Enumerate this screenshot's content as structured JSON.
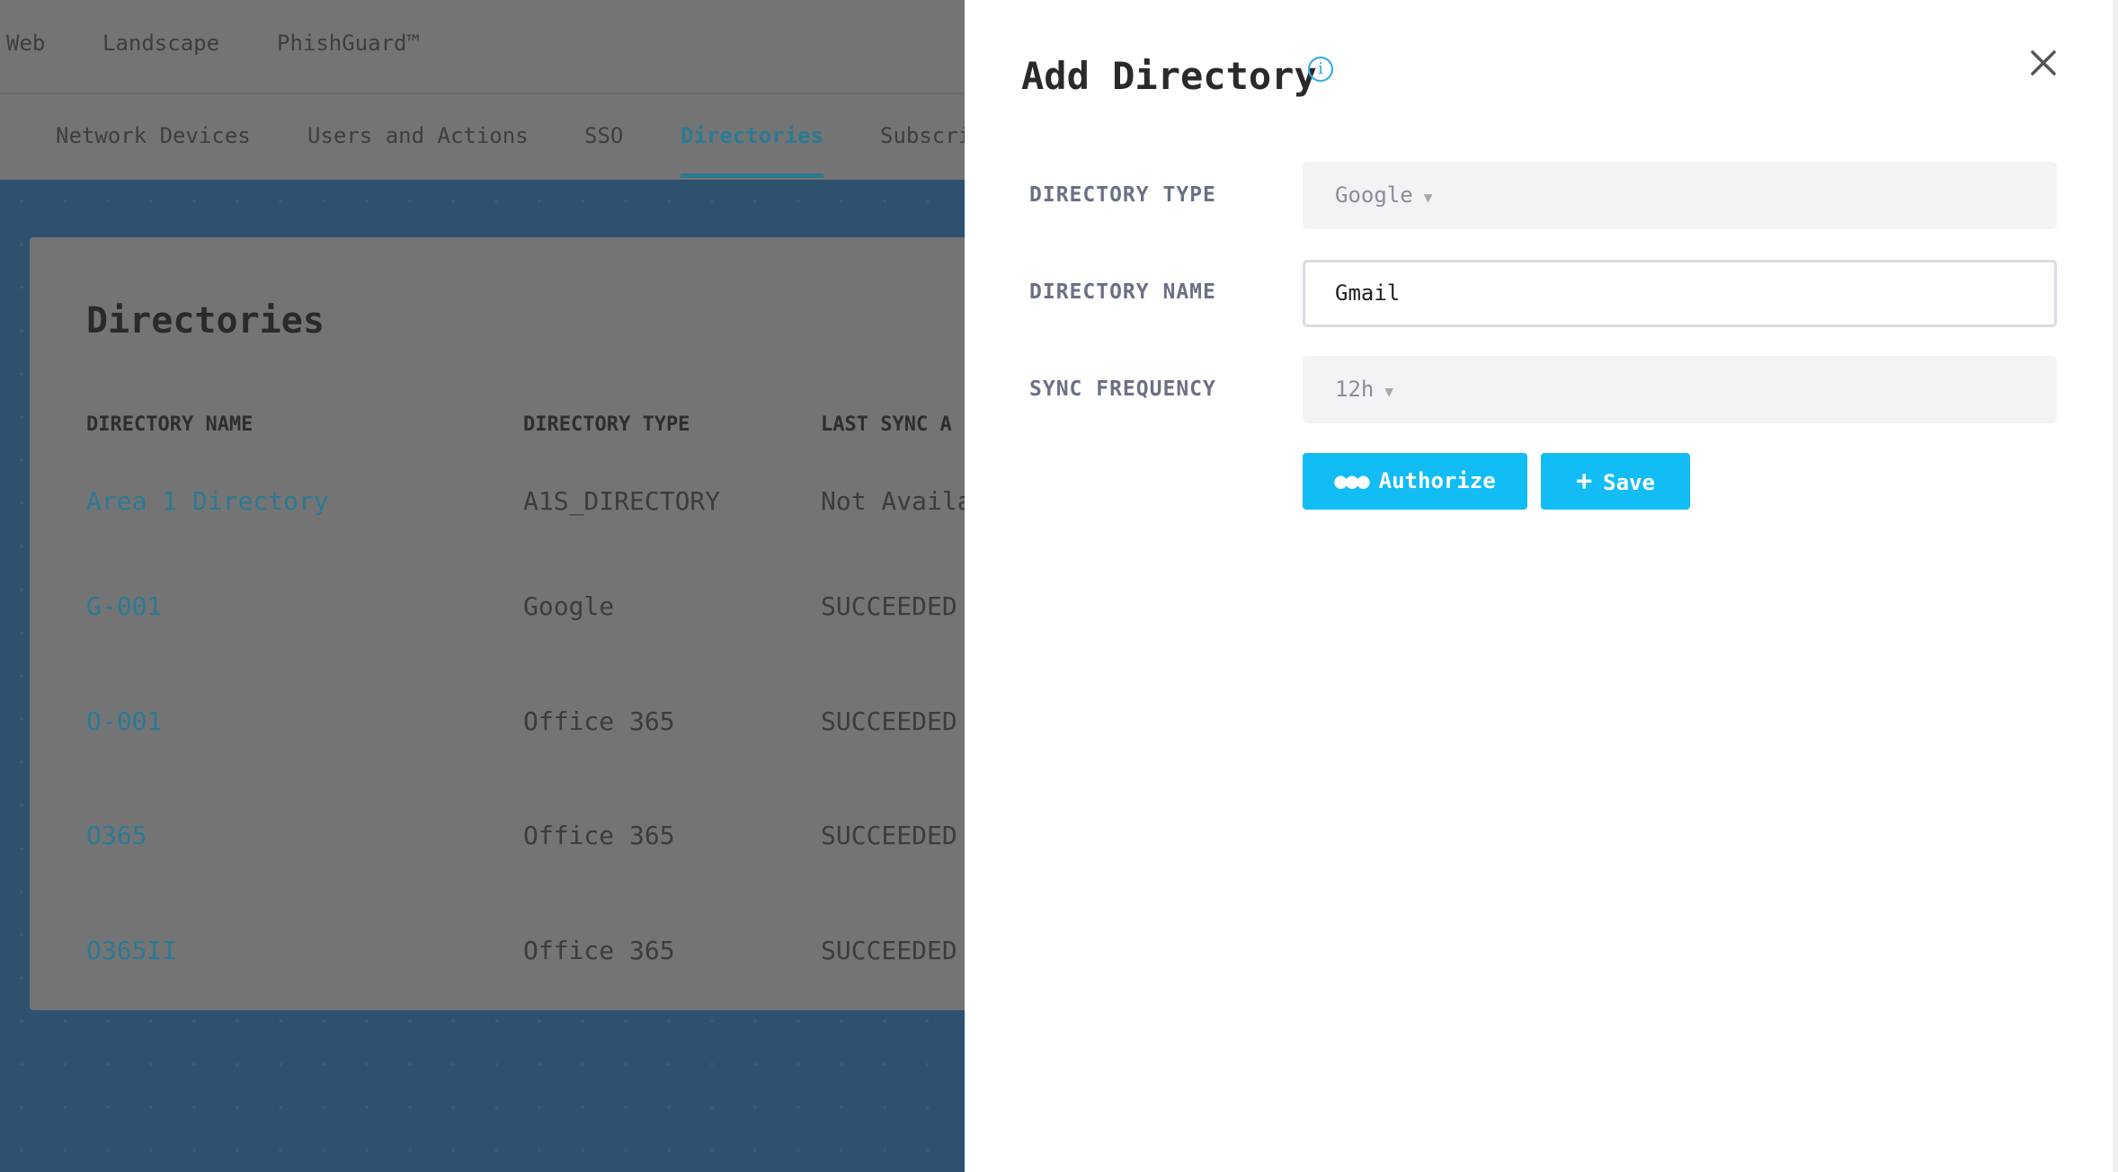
{
  "topnav": {
    "items": [
      "Web",
      "Landscape",
      "PhishGuard™"
    ]
  },
  "tabs": [
    {
      "label": "Network Devices"
    },
    {
      "label": "Users and Actions"
    },
    {
      "label": "SSO"
    },
    {
      "label": "Directories",
      "active": true
    },
    {
      "label": "Subscri"
    }
  ],
  "card": {
    "title": "Directories",
    "columns": [
      "DIRECTORY NAME",
      "DIRECTORY TYPE",
      "LAST SYNC A"
    ],
    "rows": [
      {
        "name": "Area 1 Directory",
        "type": "A1S_DIRECTORY",
        "sync": "Not Availa"
      },
      {
        "name": "G-001",
        "type": "Google",
        "sync": "SUCCEEDED"
      },
      {
        "name": "O-001",
        "type": "Office 365",
        "sync": "SUCCEEDED"
      },
      {
        "name": "O365",
        "type": "Office 365",
        "sync": "SUCCEEDED"
      },
      {
        "name": "O365II",
        "type": "Office 365",
        "sync": "SUCCEEDED"
      }
    ]
  },
  "panel": {
    "title": "Add Directory",
    "info_icon": "info-circle-icon",
    "close_icon": "close-icon",
    "directory_type": {
      "label": "DIRECTORY TYPE",
      "value": "Google"
    },
    "directory_name": {
      "label": "DIRECTORY NAME",
      "value": "Gmail"
    },
    "sync_frequency": {
      "label": "SYNC FREQUENCY",
      "value": "12h"
    },
    "authorize_label": "Authorize",
    "save_label": "Save"
  },
  "colors": {
    "accent": "#12bdf5",
    "link": "#2b7a93",
    "overlay_bg": "#747474",
    "page_blue": "#2f5170"
  }
}
